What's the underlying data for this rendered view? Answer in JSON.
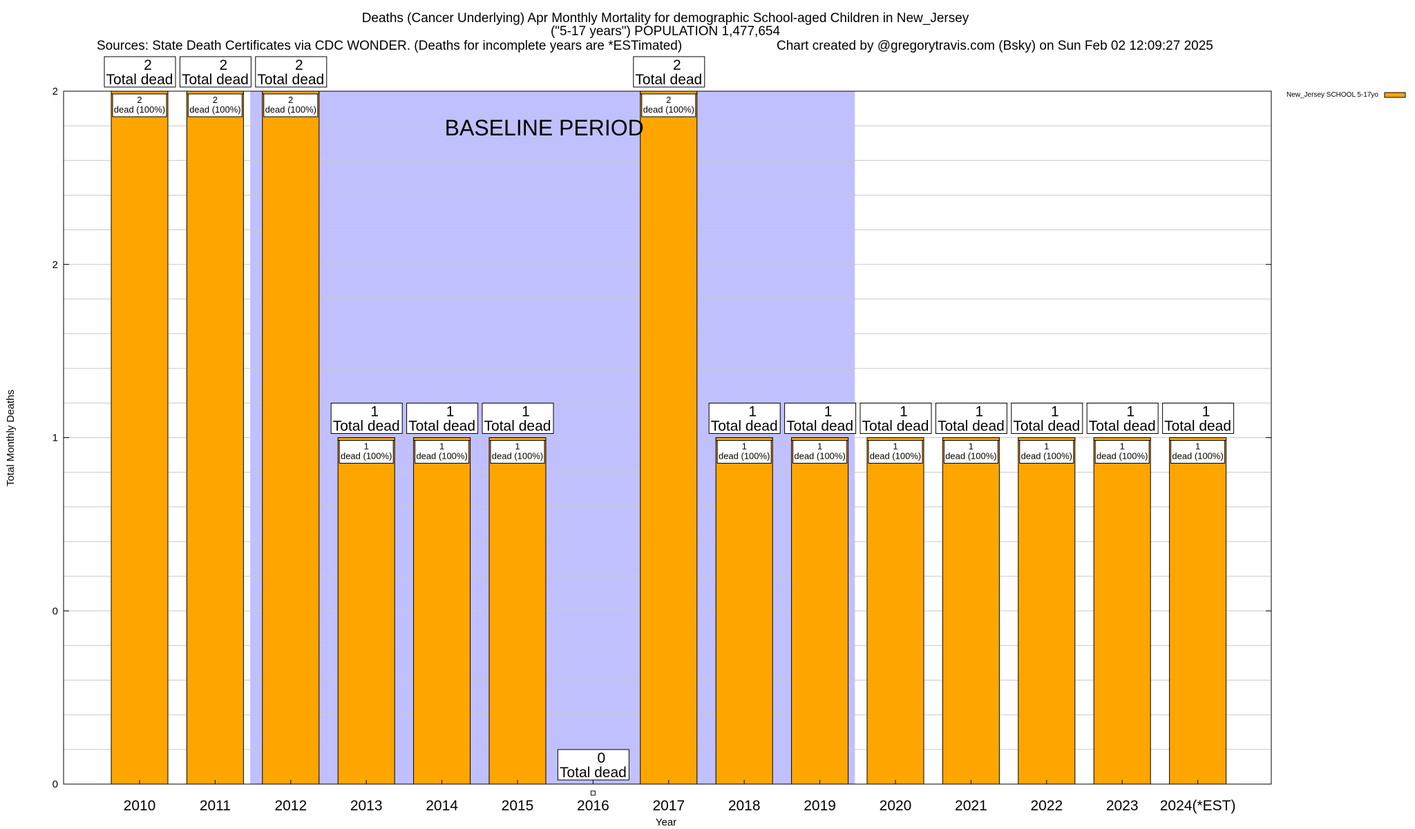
{
  "chart_data": {
    "type": "bar",
    "title_line1": "Deaths (Cancer Underlying) Apr Monthly Mortality for demographic School-aged Children in New_Jersey",
    "title_line2": "(\"5-17 years\") POPULATION 1,477,654",
    "sources": "Sources: State Death Certificates via CDC WONDER. (Deaths for incomplete years are *ESTimated)",
    "credit": "Chart created by @gregorytravis.com (Bsky) on Sun Feb 02 12:09:27 2025",
    "xlabel": "Year",
    "ylabel": "Total Monthly Deaths",
    "y_tick_labels": [
      "0",
      "0",
      "1",
      "2",
      "2"
    ],
    "y_tick_values": [
      0,
      0.5,
      1,
      1.5,
      2
    ],
    "ylim": [
      0,
      2
    ],
    "grid": true,
    "legend_position": "top-right",
    "series": [
      {
        "name": "New_Jersey SCHOOL 5-17yo",
        "color": "#ffa500",
        "values": [
          2,
          2,
          2,
          1,
          1,
          1,
          0,
          2,
          1,
          1,
          1,
          1,
          1,
          1,
          1
        ]
      }
    ],
    "categories": [
      "2010",
      "2011",
      "2012",
      "2013",
      "2014",
      "2015",
      "2016",
      "2017",
      "2018",
      "2019",
      "2020",
      "2021",
      "2022",
      "2023",
      "2024(*EST)"
    ],
    "total_labels": [
      "2",
      "2",
      "2",
      "1",
      "1",
      "1",
      "0",
      "2",
      "1",
      "1",
      "1",
      "1",
      "1",
      "1",
      "1"
    ],
    "total_dead_text": "Total dead",
    "inner_labels": [
      "2",
      "2",
      "2",
      "1",
      "1",
      "1",
      "",
      "2",
      "1",
      "1",
      "1",
      "1",
      "1",
      "1",
      "1"
    ],
    "inner_dead_text": "dead (100%)",
    "baseline": {
      "label": "BASELINE PERIOD",
      "start_category": "2012",
      "end_category": "2019",
      "color": "#c0c0ff"
    },
    "bar_color": "#ffa500",
    "cap_color": "#ffa500"
  }
}
